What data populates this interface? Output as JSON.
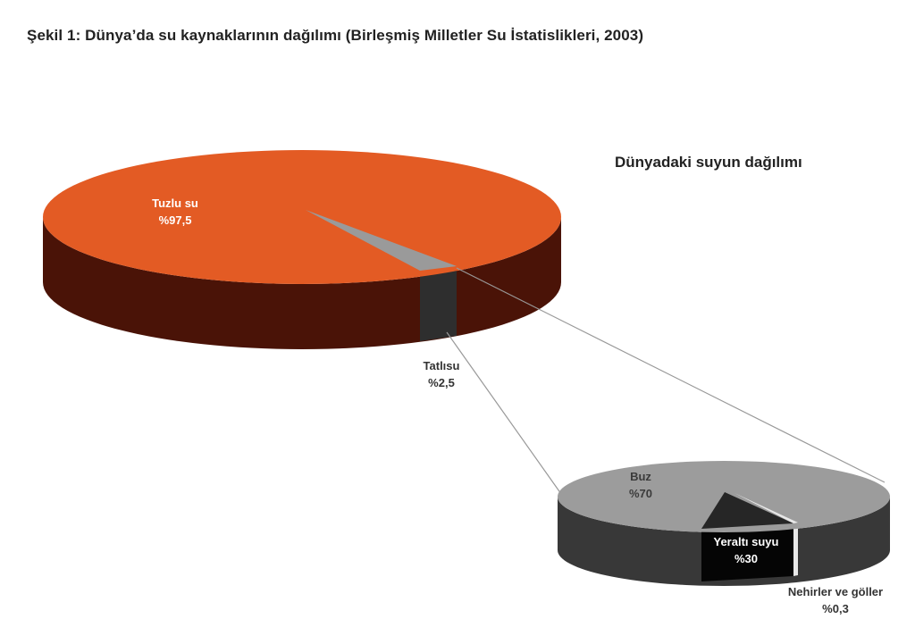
{
  "figure_title": "Şekil 1: Dünya’da su kaynaklarının dağılımı (Birleşmiş Milletler Su İstatislikleri, 2003)",
  "colors": {
    "salt_top": "#e35b24",
    "salt_side": "#4a1307",
    "fresh_top": "#9a9a9a",
    "fresh_side": "#2e2e2e",
    "ice_top": "#9c9c9c",
    "ground_top": "#262626",
    "ground_side": "#050505",
    "lakes": "#e8e8e8",
    "small_side": "#383838",
    "connector": "#999999"
  },
  "chart_data": [
    {
      "type": "pie",
      "style": "3d-exploded",
      "title": "Dünyadaki suyun dağılımı",
      "slices": [
        {
          "name": "Tuzlu su",
          "value_label": "%97,5",
          "value": 97.5
        },
        {
          "name": "Tatlısu",
          "value_label": "%2,5",
          "value": 2.5
        }
      ]
    },
    {
      "type": "pie",
      "style": "3d",
      "title": "",
      "breakdown_of": "Tatlısu",
      "slices": [
        {
          "name": "Buz",
          "value_label": "%70",
          "value": 70
        },
        {
          "name": "Yeraltı suyu",
          "value_label": "%30",
          "value": 30
        },
        {
          "name": "Nehirler ve göller",
          "value_label": "%0,3",
          "value": 0.3
        }
      ]
    }
  ]
}
